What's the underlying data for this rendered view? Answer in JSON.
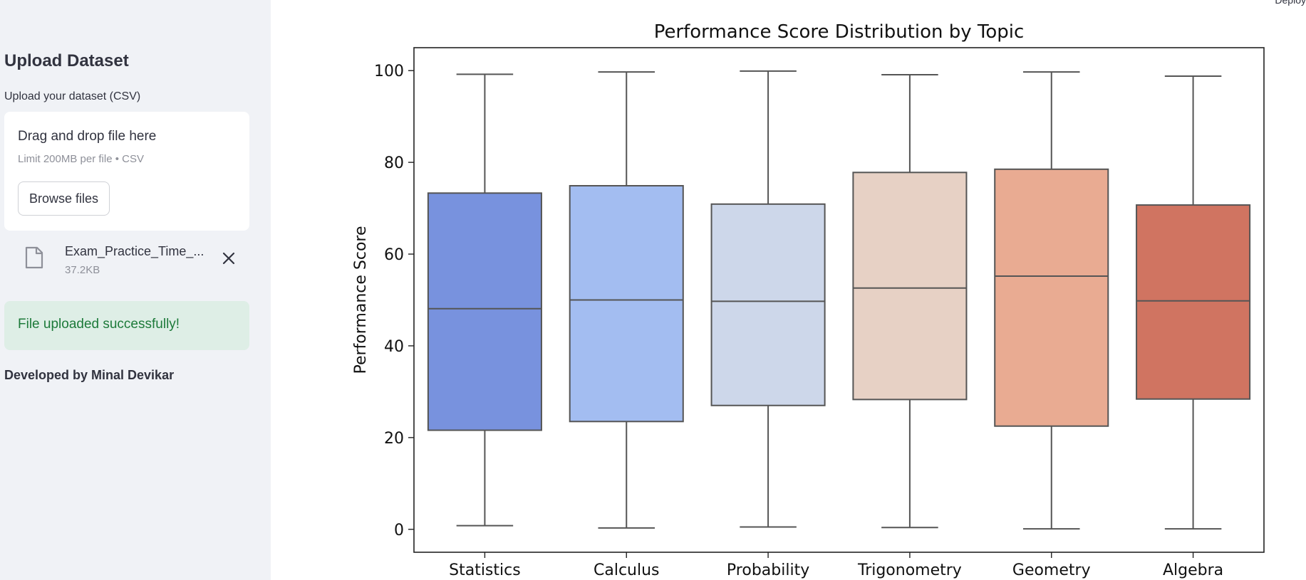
{
  "sidebar": {
    "title": "Upload Dataset",
    "upload_label": "Upload your dataset (CSV)",
    "dropzone": {
      "title": "Drag and drop file here",
      "limit": "Limit 200MB per file • CSV",
      "browse_label": "Browse files"
    },
    "file": {
      "name": "Exam_Practice_Time_...",
      "size": "37.2KB"
    },
    "success_message": "File uploaded successfully!",
    "credit": "Developed by Minal Devikar"
  },
  "header": {
    "deploy_label": "Deploy"
  },
  "chart_data": {
    "type": "box",
    "title": "Performance Score Distribution by Topic",
    "xlabel": "",
    "ylabel": "Performance Score",
    "ylim": [
      -5,
      105
    ],
    "yticks": [
      0,
      20,
      40,
      60,
      80,
      100
    ],
    "grid": false,
    "categories": [
      "Statistics",
      "Calculus",
      "Probability",
      "Trigonometry",
      "Geometry",
      "Algebra"
    ],
    "boxes": [
      {
        "min": 0.8,
        "q1": 21.6,
        "median": 48.1,
        "q3": 73.3,
        "max": 99.2
      },
      {
        "min": 0.3,
        "q1": 23.5,
        "median": 50.0,
        "q3": 74.9,
        "max": 99.7
      },
      {
        "min": 0.5,
        "q1": 27.0,
        "median": 49.7,
        "q3": 70.9,
        "max": 99.9
      },
      {
        "min": 0.4,
        "q1": 28.3,
        "median": 52.6,
        "q3": 77.8,
        "max": 99.1
      },
      {
        "min": 0.1,
        "q1": 22.5,
        "median": 55.2,
        "q3": 78.5,
        "max": 99.7
      },
      {
        "min": 0.1,
        "q1": 28.4,
        "median": 49.8,
        "q3": 70.7,
        "max": 98.8
      }
    ],
    "colors": [
      "#7892de",
      "#a3bdf1",
      "#cdd7ea",
      "#e7d1c5",
      "#e9ab92",
      "#d07461"
    ],
    "line_color": "#555555"
  }
}
